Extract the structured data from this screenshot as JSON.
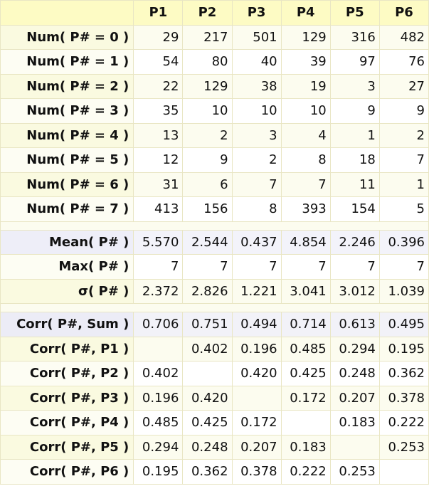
{
  "columns": [
    "P1",
    "P2",
    "P3",
    "P4",
    "P5",
    "P6"
  ],
  "num_rows": [
    {
      "label": "Num( P# = 0 )",
      "values": [
        "29",
        "217",
        "501",
        "129",
        "316",
        "482"
      ]
    },
    {
      "label": "Num( P# = 1 )",
      "values": [
        "54",
        "80",
        "40",
        "39",
        "97",
        "76"
      ]
    },
    {
      "label": "Num( P# = 2 )",
      "values": [
        "22",
        "129",
        "38",
        "19",
        "3",
        "27"
      ]
    },
    {
      "label": "Num( P# = 3 )",
      "values": [
        "35",
        "10",
        "10",
        "10",
        "9",
        "9"
      ]
    },
    {
      "label": "Num( P# = 4 )",
      "values": [
        "13",
        "2",
        "3",
        "4",
        "1",
        "2"
      ]
    },
    {
      "label": "Num( P# = 5 )",
      "values": [
        "12",
        "9",
        "2",
        "8",
        "18",
        "7"
      ]
    },
    {
      "label": "Num( P# = 6 )",
      "values": [
        "31",
        "6",
        "7",
        "7",
        "11",
        "1"
      ]
    },
    {
      "label": "Num( P# = 7 )",
      "values": [
        "413",
        "156",
        "8",
        "393",
        "154",
        "5"
      ]
    }
  ],
  "stat_rows": [
    {
      "label": "Mean( P# )",
      "values": [
        "5.570",
        "2.544",
        "0.437",
        "4.854",
        "2.246",
        "0.396"
      ]
    },
    {
      "label": "Max( P# )",
      "values": [
        "7",
        "7",
        "7",
        "7",
        "7",
        "7"
      ]
    },
    {
      "label": "σ( P# )",
      "values": [
        "2.372",
        "2.826",
        "1.221",
        "3.041",
        "3.012",
        "1.039"
      ]
    }
  ],
  "corr_rows": [
    {
      "label": "Corr( P#, Sum )",
      "values": [
        "0.706",
        "0.751",
        "0.494",
        "0.714",
        "0.613",
        "0.495"
      ]
    },
    {
      "label": "Corr( P#, P1 )",
      "values": [
        "",
        "0.402",
        "0.196",
        "0.485",
        "0.294",
        "0.195"
      ]
    },
    {
      "label": "Corr( P#, P2 )",
      "values": [
        "0.402",
        "",
        "0.420",
        "0.425",
        "0.248",
        "0.362"
      ]
    },
    {
      "label": "Corr( P#, P3 )",
      "values": [
        "0.196",
        "0.420",
        "",
        "0.172",
        "0.207",
        "0.378"
      ]
    },
    {
      "label": "Corr( P#, P4 )",
      "values": [
        "0.485",
        "0.425",
        "0.172",
        "",
        "0.183",
        "0.222"
      ]
    },
    {
      "label": "Corr( P#, P5 )",
      "values": [
        "0.294",
        "0.248",
        "0.207",
        "0.183",
        "",
        "0.253"
      ]
    },
    {
      "label": "Corr( P#, P6 )",
      "values": [
        "0.195",
        "0.362",
        "0.378",
        "0.222",
        "0.253",
        ""
      ]
    }
  ]
}
